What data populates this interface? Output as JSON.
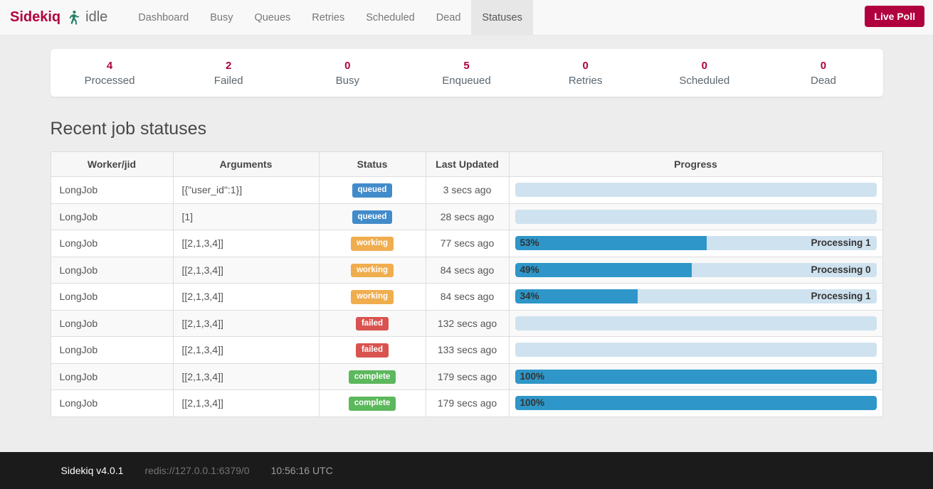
{
  "navbar": {
    "brand": "Sidekiq",
    "status_text": "idle",
    "items": [
      {
        "label": "Dashboard",
        "active": false
      },
      {
        "label": "Busy",
        "active": false
      },
      {
        "label": "Queues",
        "active": false
      },
      {
        "label": "Retries",
        "active": false
      },
      {
        "label": "Scheduled",
        "active": false
      },
      {
        "label": "Dead",
        "active": false
      },
      {
        "label": "Statuses",
        "active": true
      }
    ],
    "live_poll_label": "Live Poll"
  },
  "stats": [
    {
      "value": "4",
      "label": "Processed"
    },
    {
      "value": "2",
      "label": "Failed"
    },
    {
      "value": "0",
      "label": "Busy"
    },
    {
      "value": "5",
      "label": "Enqueued"
    },
    {
      "value": "0",
      "label": "Retries"
    },
    {
      "value": "0",
      "label": "Scheduled"
    },
    {
      "value": "0",
      "label": "Dead"
    }
  ],
  "page": {
    "heading": "Recent job statuses"
  },
  "table": {
    "headers": [
      "Worker/jid",
      "Arguments",
      "Status",
      "Last Updated",
      "Progress"
    ],
    "rows": [
      {
        "worker": "LongJob",
        "args": "[{\"user_id\":1}]",
        "status": "queued",
        "updated": "3 secs ago",
        "progress": {
          "pct": 0,
          "label": "",
          "message": ""
        }
      },
      {
        "worker": "LongJob",
        "args": "[1]",
        "status": "queued",
        "updated": "28 secs ago",
        "progress": {
          "pct": 0,
          "label": "",
          "message": ""
        }
      },
      {
        "worker": "LongJob",
        "args": "[[2,1,3,4]]",
        "status": "working",
        "updated": "77 secs ago",
        "progress": {
          "pct": 53,
          "label": "53%",
          "message": "Processing 1"
        }
      },
      {
        "worker": "LongJob",
        "args": "[[2,1,3,4]]",
        "status": "working",
        "updated": "84 secs ago",
        "progress": {
          "pct": 49,
          "label": "49%",
          "message": "Processing 0"
        }
      },
      {
        "worker": "LongJob",
        "args": "[[2,1,3,4]]",
        "status": "working",
        "updated": "84 secs ago",
        "progress": {
          "pct": 34,
          "label": "34%",
          "message": "Processing 1"
        }
      },
      {
        "worker": "LongJob",
        "args": "[[2,1,3,4]]",
        "status": "failed",
        "updated": "132 secs ago",
        "progress": {
          "pct": 0,
          "label": "",
          "message": ""
        }
      },
      {
        "worker": "LongJob",
        "args": "[[2,1,3,4]]",
        "status": "failed",
        "updated": "133 secs ago",
        "progress": {
          "pct": 0,
          "label": "",
          "message": ""
        }
      },
      {
        "worker": "LongJob",
        "args": "[[2,1,3,4]]",
        "status": "complete",
        "updated": "179 secs ago",
        "progress": {
          "pct": 100,
          "label": "100%",
          "message": ""
        }
      },
      {
        "worker": "LongJob",
        "args": "[[2,1,3,4]]",
        "status": "complete",
        "updated": "179 secs ago",
        "progress": {
          "pct": 100,
          "label": "100%",
          "message": ""
        }
      }
    ]
  },
  "footer": {
    "version": "Sidekiq v4.0.1",
    "redis_url": "redis://127.0.0.1:6379/0",
    "time": "10:56:16 UTC"
  },
  "colors": {
    "accent": "#b1003e",
    "page_bg": "#ededed",
    "nav_bg": "#f8f8f8",
    "nav_border": "#e7e7e7",
    "tab_active_bg": "#e7e7e7",
    "table_border": "#dddddd",
    "footer_bg": "#1b1b1b",
    "runner_icon": "#27806a",
    "progress_track": "#cfe2ef",
    "progress_fill": "#2e96c8",
    "status": {
      "queued": "#428bca",
      "working": "#f0ad4e",
      "failed": "#d9534f",
      "complete": "#5cb85c"
    }
  }
}
